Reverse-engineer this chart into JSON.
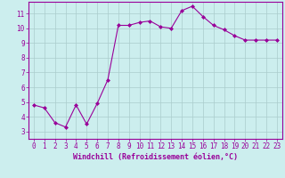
{
  "x": [
    0,
    1,
    2,
    3,
    4,
    5,
    6,
    7,
    8,
    9,
    10,
    11,
    12,
    13,
    14,
    15,
    16,
    17,
    18,
    19,
    20,
    21,
    22,
    23
  ],
  "y": [
    4.8,
    4.6,
    3.6,
    3.3,
    4.8,
    3.5,
    4.9,
    6.5,
    10.2,
    10.2,
    10.4,
    10.5,
    10.1,
    10.0,
    11.2,
    11.5,
    10.8,
    10.2,
    9.9,
    9.5,
    9.2,
    9.2,
    9.2,
    9.2
  ],
  "line_color": "#990099",
  "marker": "D",
  "marker_size": 2.0,
  "bg_color": "#cceeee",
  "grid_color": "#aacccc",
  "xlabel": "Windchill (Refroidissement éolien,°C)",
  "xlabel_color": "#990099",
  "tick_color": "#990099",
  "ylim": [
    2.5,
    11.8
  ],
  "xlim": [
    -0.5,
    23.5
  ],
  "yticks": [
    3,
    4,
    5,
    6,
    7,
    8,
    9,
    10,
    11
  ],
  "xticks": [
    0,
    1,
    2,
    3,
    4,
    5,
    6,
    7,
    8,
    9,
    10,
    11,
    12,
    13,
    14,
    15,
    16,
    17,
    18,
    19,
    20,
    21,
    22,
    23
  ],
  "tick_fontsize": 5.5,
  "xlabel_fontsize": 6.0,
  "linewidth": 0.8
}
